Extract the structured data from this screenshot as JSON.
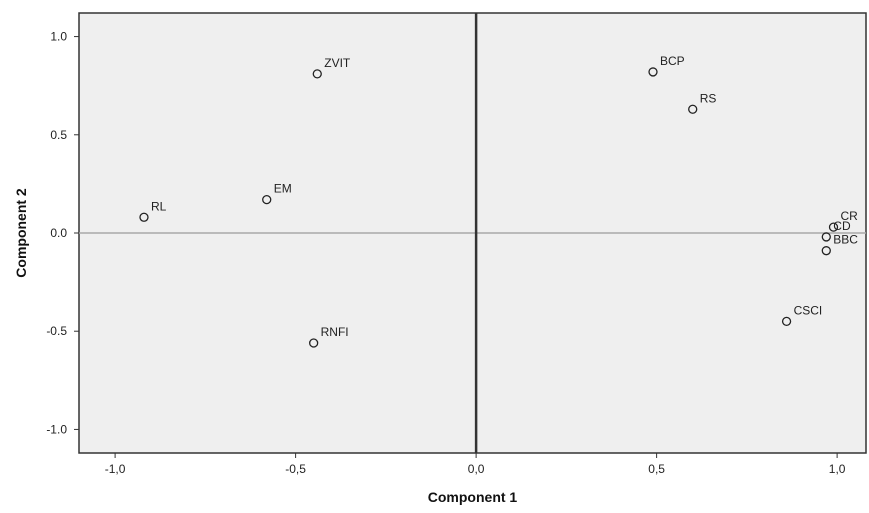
{
  "chart_data": {
    "type": "scatter",
    "title": "",
    "xlabel": "Component 1",
    "ylabel": "Component 2",
    "xlim": [
      -1.1,
      1.08
    ],
    "ylim": [
      -1.12,
      1.12
    ],
    "xticks": [
      -1.0,
      -0.5,
      0.0,
      0.5,
      1.0
    ],
    "xtick_labels": [
      "-1,0",
      "-0,5",
      "0,0",
      "0,5",
      "1,0"
    ],
    "yticks": [
      1.0,
      0.5,
      0.0,
      -0.5,
      -1.0
    ],
    "ytick_labels": [
      "1.0",
      "0.5",
      "0.0",
      "-0.5",
      "-1.0"
    ],
    "grid": false,
    "reference_lines": {
      "x": 0,
      "y": 0
    },
    "colors": {
      "plot_bg": "#efefef",
      "frame": "#333333",
      "x_ref": "#333333",
      "y_ref": "#a9a9a9",
      "marker": "#222222"
    },
    "points": [
      {
        "label": "ZVIT",
        "x": -0.44,
        "y": 0.81
      },
      {
        "label": "BCP",
        "x": 0.49,
        "y": 0.82
      },
      {
        "label": "RS",
        "x": 0.6,
        "y": 0.63
      },
      {
        "label": "EM",
        "x": -0.58,
        "y": 0.17
      },
      {
        "label": "RL",
        "x": -0.92,
        "y": 0.08
      },
      {
        "label": "CR",
        "x": 0.99,
        "y": 0.03
      },
      {
        "label": "CD",
        "x": 0.97,
        "y": -0.02
      },
      {
        "label": "BBC",
        "x": 0.97,
        "y": -0.09
      },
      {
        "label": "CSCI",
        "x": 0.86,
        "y": -0.45
      },
      {
        "label": "RNFI",
        "x": -0.45,
        "y": -0.56
      }
    ]
  }
}
